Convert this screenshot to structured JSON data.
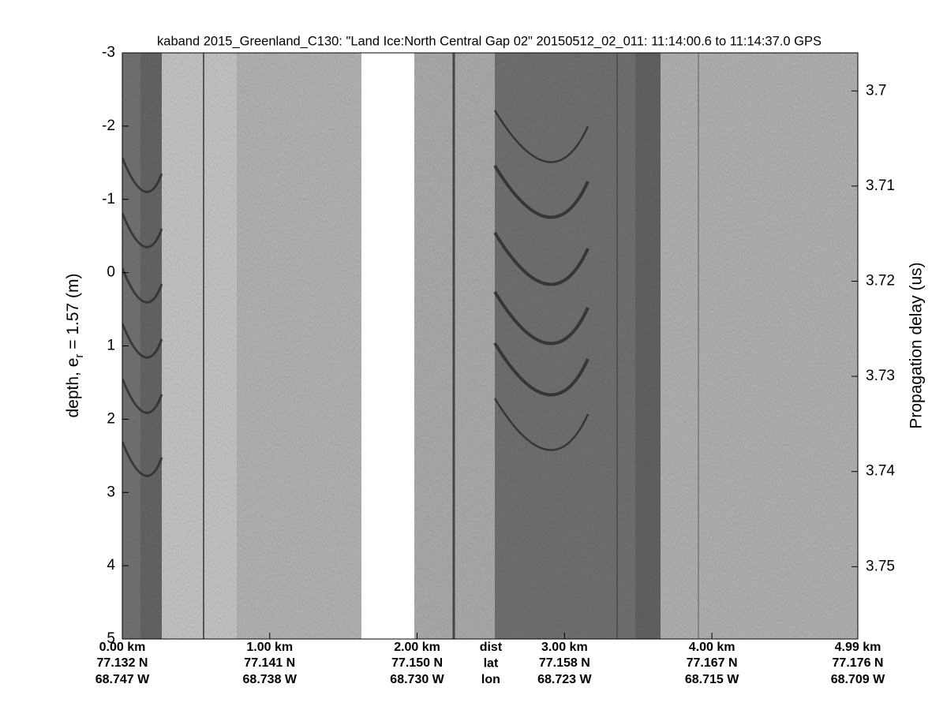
{
  "chart_data": {
    "type": "echogram",
    "title": "kaband 2015_Greenland_C130: \"Land Ice:North Central Gap 02\"  20150512_02_011: 11:14:00.6 to 11:14:37.0 GPS",
    "ylabel": [
      "depth, e",
      "r",
      " = 1.57 (m)"
    ],
    "y2label": "Propagation delay (us)",
    "ylim": [
      -3,
      5
    ],
    "yticks": [
      -3,
      -2,
      -1,
      0,
      1,
      2,
      3,
      4,
      5
    ],
    "y2lim": [
      3.696,
      3.7576
    ],
    "y2ticks": [
      3.7,
      3.71,
      3.72,
      3.73,
      3.74,
      3.75
    ],
    "xlim": [
      0,
      4.99
    ],
    "xticks": [
      {
        "value": 0,
        "label": "0.00 km"
      },
      {
        "value": 1,
        "label": "1.00 km"
      },
      {
        "value": 2,
        "label": "2.00 km"
      },
      {
        "value": 3,
        "label": "3.00 km"
      },
      {
        "value": 4,
        "label": "4.00 km"
      },
      {
        "value": 4.99,
        "label": "4.99 km"
      }
    ],
    "lat_labels": [
      "77.132 N",
      "77.141 N",
      "77.150 N",
      "77.158 N",
      "77.167 N",
      "77.176 N"
    ],
    "lon_labels": [
      "68.747 W",
      "68.738 W",
      "68.730 W",
      "68.723 W",
      "68.715 W",
      "68.709 W"
    ],
    "row_labels": [
      "dist",
      "lat",
      "lon"
    ],
    "y_inverted": true
  }
}
